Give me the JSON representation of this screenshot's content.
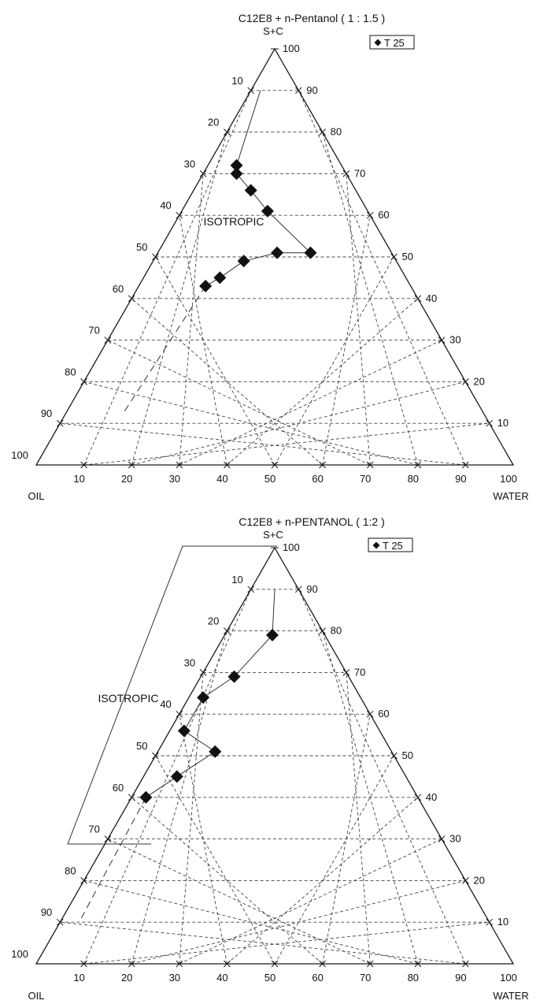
{
  "chart_data": [
    {
      "type": "scatter",
      "subtype": "ternary",
      "title": "C12E8 + n-Pentanol ( 1 : 1.5 )",
      "apex_labels": {
        "top": "S+C",
        "left": "OIL",
        "right": "WATER"
      },
      "left_scale_ticks": [
        "10",
        "20",
        "30",
        "40",
        "50",
        "60",
        "70",
        "80",
        "90",
        "100"
      ],
      "right_scale_ticks": [
        "100",
        "90",
        "80",
        "70",
        "60",
        "50",
        "40",
        "30",
        "20",
        "10"
      ],
      "bottom_scale_ticks": [
        "10",
        "20",
        "30",
        "40",
        "50",
        "60",
        "70",
        "80",
        "90",
        "100"
      ],
      "legend": {
        "marker": "diamond",
        "label": "T 25",
        "placement": "top-right"
      },
      "region_label": "ISOTROPIC",
      "series": [
        {
          "name": "T 25",
          "points": [
            {
              "oil": 22,
              "sc": 72,
              "water": 6
            },
            {
              "oil": 23,
              "sc": 70,
              "water": 7
            },
            {
              "oil": 22,
              "sc": 66,
              "water": 12
            },
            {
              "oil": 21,
              "sc": 61,
              "water": 18
            },
            {
              "oil": 17,
              "sc": 51,
              "water": 32
            },
            {
              "oil": 24,
              "sc": 51,
              "water": 25
            },
            {
              "oil": 32,
              "sc": 49,
              "water": 19
            },
            {
              "oil": 39,
              "sc": 45,
              "water": 16
            },
            {
              "oil": 43,
              "sc": 43,
              "water": 14
            }
          ]
        }
      ],
      "boundary_extension": [
        {
          "oil": 8,
          "sc": 90,
          "water": 2
        },
        {
          "oil": 22,
          "sc": 72,
          "water": 6
        }
      ],
      "dashed_extension": [
        {
          "oil": 43,
          "sc": 43,
          "water": 14
        },
        {
          "oil": 76,
          "sc": 12,
          "water": 12
        }
      ]
    },
    {
      "type": "scatter",
      "subtype": "ternary",
      "title": "C12E8 + n-PENTANOL ( 1:2 )",
      "apex_labels": {
        "top": "S+C",
        "left": "OIL",
        "right": "WATER"
      },
      "left_scale_ticks": [
        "10",
        "20",
        "30",
        "40",
        "50",
        "60",
        "70",
        "80",
        "90",
        "100"
      ],
      "right_scale_ticks": [
        "100",
        "90",
        "80",
        "70",
        "60",
        "50",
        "40",
        "30",
        "20",
        "10"
      ],
      "bottom_scale_ticks": [
        "10",
        "20",
        "30",
        "40",
        "50",
        "60",
        "70",
        "80",
        "90",
        "100"
      ],
      "legend": {
        "marker": "diamond",
        "label": "T 25",
        "placement": "top-right"
      },
      "region_label": "ISOTROPIC",
      "series": [
        {
          "name": "T 25",
          "points": [
            {
              "oil": 11,
              "sc": 79,
              "water": 10
            },
            {
              "oil": 24,
              "sc": 69,
              "water": 7
            },
            {
              "oil": 33,
              "sc": 64,
              "water": 3
            },
            {
              "oil": 41,
              "sc": 56,
              "water": 3
            },
            {
              "oil": 37,
              "sc": 51,
              "water": 12
            },
            {
              "oil": 48,
              "sc": 45,
              "water": 7
            },
            {
              "oil": 57,
              "sc": 40,
              "water": 3
            }
          ]
        }
      ],
      "boundary_extension": [
        {
          "oil": 5,
          "sc": 90,
          "water": 5
        },
        {
          "oil": 11,
          "sc": 79,
          "water": 10
        }
      ],
      "dashed_extension": [
        {
          "oil": 57,
          "sc": 40,
          "water": 3
        },
        {
          "oil": 86,
          "sc": 10,
          "water": 4
        }
      ]
    }
  ]
}
